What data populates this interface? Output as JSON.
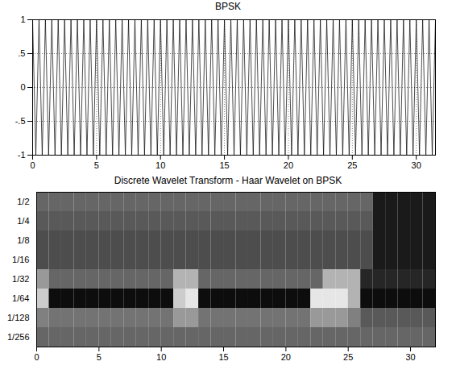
{
  "chart_data": [
    {
      "type": "line",
      "title": "BPSK",
      "x": [
        0,
        0.25,
        0.5,
        0.75,
        1,
        1.25,
        1.5,
        1.75,
        2,
        2.25,
        2.5,
        2.75,
        3,
        3.25,
        3.5,
        3.75,
        4,
        4.25,
        4.5,
        4.75,
        5,
        5.25,
        5.5,
        5.75,
        6,
        6.25,
        6.5,
        6.75,
        7,
        7.25,
        7.5,
        7.75,
        8,
        8.25,
        8.5,
        8.75,
        9,
        9.25,
        9.5,
        9.75,
        10,
        10.25,
        10.5,
        10.75,
        11,
        11.25,
        11.5,
        11.75,
        12,
        12.25,
        12.5,
        12.75,
        13,
        13.25,
        13.5,
        13.75,
        14,
        14.25,
        14.5,
        14.75,
        15,
        15.25,
        15.5,
        15.75,
        16,
        16.25,
        16.5,
        16.75,
        17,
        17.25,
        17.5,
        17.75,
        18,
        18.25,
        18.5,
        18.75,
        19,
        19.25,
        19.5,
        19.75,
        20,
        20.25,
        20.5,
        20.75,
        21,
        21.25,
        21.5,
        21.75,
        22,
        22.25,
        22.5,
        22.75,
        23,
        23.25,
        23.5,
        23.75,
        24,
        24.25,
        24.5,
        24.75,
        25,
        25.25,
        25.5,
        25.75,
        26,
        26.25,
        26.5,
        26.75,
        27,
        27.25,
        27.5,
        27.75,
        28,
        28.25,
        28.5,
        28.75,
        29,
        29.25,
        29.5,
        29.75,
        30,
        30.25,
        30.5,
        30.75,
        31,
        31.25,
        31.5
      ],
      "values": [
        1,
        -1,
        1,
        -1,
        1,
        -1,
        1,
        -1,
        1,
        -1,
        1,
        -1,
        1,
        -1,
        1,
        -1,
        1,
        -1,
        1,
        -1,
        1,
        -1,
        1,
        -1,
        1,
        -1,
        1,
        -1,
        1,
        -1,
        1,
        -1,
        1,
        -1,
        1,
        -1,
        1,
        -1,
        1,
        -1,
        1,
        -1,
        1,
        -1,
        1,
        -1,
        1,
        -1,
        1,
        -1,
        1,
        -1,
        1,
        -1,
        1,
        -1,
        1,
        -1,
        1,
        -1,
        1,
        -1,
        1,
        -1,
        1,
        -1,
        1,
        -1,
        1,
        -1,
        1,
        -1,
        1,
        -1,
        1,
        -1,
        1,
        -1,
        1,
        -1,
        1,
        -1,
        1,
        -1,
        1,
        -1,
        1,
        -1,
        1,
        -1,
        1,
        -1,
        1,
        -1,
        1,
        -1,
        1,
        -1,
        1,
        -1,
        1,
        -1,
        1,
        -1,
        1,
        -1,
        1,
        -1,
        1,
        -1,
        1,
        -1,
        1,
        -1,
        1,
        -1,
        1,
        -1,
        1,
        -1,
        1,
        -1,
        1,
        -1,
        1,
        -1,
        1
      ],
      "color": "#000000",
      "xlim": [
        0,
        31.5
      ],
      "xticks": [
        0,
        5,
        10,
        15,
        20,
        25,
        30
      ],
      "ylim": [
        -1,
        1
      ],
      "yticks": [
        -1,
        {
          "value": -0.5,
          "label": "-.5"
        },
        0,
        {
          "value": 0.5,
          "label": ".5"
        },
        1
      ],
      "grid": true
    },
    {
      "type": "heatmap",
      "title": "Discrete Wavelet Transform - Haar Wavelet on BPSK",
      "categories": [
        "1/2",
        "1/4",
        "1/8",
        "1/16",
        "1/32",
        "1/64",
        "1/128",
        "1/256"
      ],
      "xlim": [
        0,
        32
      ],
      "xticks": [
        0,
        5,
        10,
        15,
        20,
        25,
        30
      ],
      "zlim": [
        0,
        1
      ],
      "cells": [
        [
          0.4,
          0.4,
          0.4,
          0.4,
          0.4,
          0.4,
          0.4,
          0.4,
          0.4,
          0.4,
          0.4,
          0.4,
          0.4,
          0.4,
          0.4,
          0.4,
          0.4,
          0.4,
          0.4,
          0.4,
          0.4,
          0.4,
          0.4,
          0.4,
          0.4,
          0.4,
          0.4,
          0.1,
          0.1,
          0.1,
          0.1,
          0.1
        ],
        [
          0.35,
          0.35,
          0.35,
          0.35,
          0.35,
          0.35,
          0.35,
          0.35,
          0.35,
          0.35,
          0.35,
          0.35,
          0.35,
          0.35,
          0.35,
          0.35,
          0.35,
          0.35,
          0.35,
          0.35,
          0.35,
          0.35,
          0.35,
          0.35,
          0.35,
          0.35,
          0.35,
          0.1,
          0.1,
          0.1,
          0.1,
          0.1
        ],
        [
          0.3,
          0.3,
          0.3,
          0.3,
          0.3,
          0.3,
          0.3,
          0.3,
          0.3,
          0.3,
          0.3,
          0.3,
          0.3,
          0.3,
          0.3,
          0.3,
          0.3,
          0.3,
          0.3,
          0.3,
          0.3,
          0.3,
          0.3,
          0.3,
          0.3,
          0.3,
          0.3,
          0.1,
          0.1,
          0.1,
          0.1,
          0.1
        ],
        [
          0.3,
          0.3,
          0.3,
          0.3,
          0.3,
          0.3,
          0.3,
          0.3,
          0.3,
          0.3,
          0.3,
          0.3,
          0.3,
          0.3,
          0.3,
          0.3,
          0.3,
          0.3,
          0.3,
          0.3,
          0.3,
          0.3,
          0.3,
          0.3,
          0.3,
          0.3,
          0.3,
          0.1,
          0.1,
          0.1,
          0.1,
          0.1
        ],
        [
          0.6,
          0.4,
          0.4,
          0.4,
          0.4,
          0.4,
          0.4,
          0.4,
          0.4,
          0.4,
          0.4,
          0.7,
          0.7,
          0.4,
          0.4,
          0.4,
          0.4,
          0.4,
          0.4,
          0.4,
          0.4,
          0.4,
          0.4,
          0.7,
          0.7,
          0.7,
          0.15,
          0.15,
          0.15,
          0.15,
          0.15,
          0.15
        ],
        [
          0.8,
          0.05,
          0.05,
          0.05,
          0.05,
          0.05,
          0.05,
          0.05,
          0.05,
          0.05,
          0.05,
          0.8,
          0.9,
          0.05,
          0.05,
          0.05,
          0.05,
          0.05,
          0.05,
          0.05,
          0.05,
          0.05,
          0.9,
          0.9,
          0.9,
          0.7,
          0.05,
          0.05,
          0.05,
          0.05,
          0.05,
          0.05
        ],
        [
          0.5,
          0.45,
          0.45,
          0.45,
          0.45,
          0.45,
          0.45,
          0.45,
          0.45,
          0.45,
          0.45,
          0.6,
          0.6,
          0.45,
          0.45,
          0.45,
          0.45,
          0.45,
          0.45,
          0.45,
          0.45,
          0.45,
          0.6,
          0.6,
          0.6,
          0.5,
          0.35,
          0.35,
          0.35,
          0.35,
          0.35,
          0.35
        ],
        [
          0.4,
          0.4,
          0.4,
          0.4,
          0.4,
          0.4,
          0.4,
          0.4,
          0.4,
          0.4,
          0.4,
          0.4,
          0.4,
          0.4,
          0.4,
          0.4,
          0.4,
          0.4,
          0.4,
          0.4,
          0.4,
          0.4,
          0.4,
          0.4,
          0.4,
          0.4,
          0.4,
          0.4,
          0.4,
          0.4,
          0.4,
          0.4
        ]
      ]
    }
  ]
}
